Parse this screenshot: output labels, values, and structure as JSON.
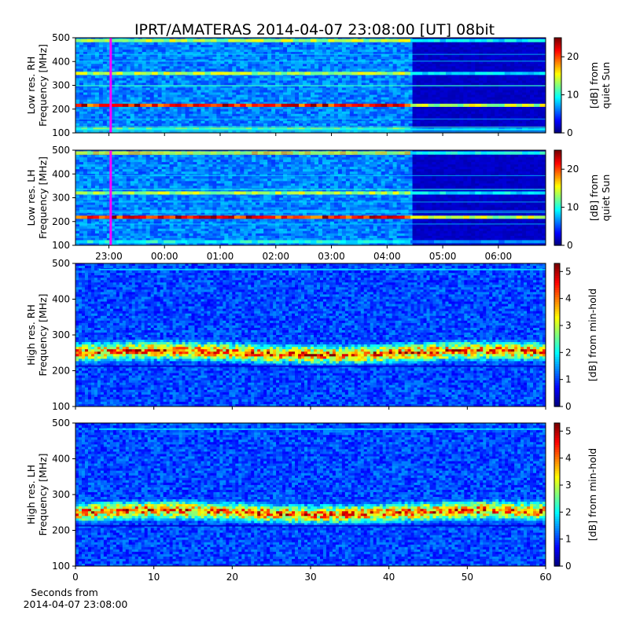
{
  "figure": {
    "title": "IPRT/AMATERAS 2014-04-07 23:08:00 [UT]   08bit"
  },
  "chart_data": [
    {
      "id": "low-rh",
      "type": "heatmap",
      "title": "",
      "ylabel": [
        "Low res. RH",
        "Frequency [MHz]"
      ],
      "ylim": [
        100,
        500
      ],
      "yticks": [
        100,
        200,
        300,
        400,
        500
      ],
      "xlim": [
        -0.6,
        7.85
      ],
      "xticks": [
        0,
        1,
        2,
        3,
        4,
        5,
        6,
        7
      ],
      "xticklabels": [
        "23:00",
        "00:00",
        "01:00",
        "02:00",
        "03:00",
        "04:00",
        "05:00",
        "06:00"
      ],
      "show_xticklabels": false,
      "colorbar": {
        "label": [
          "[dB] from",
          "quiet Sun"
        ],
        "range": [
          0,
          25
        ],
        "ticks": [
          0,
          10,
          20
        ]
      },
      "colormap": "jet",
      "marker_line": {
        "x": 0.0333,
        "color": "#ff00ff"
      },
      "data_gap_start": 5.4,
      "emission_bands": [
        {
          "freq": 488,
          "intensity": 14
        },
        {
          "freq": 350,
          "intensity": 14
        },
        {
          "freq": 216,
          "intensity": 22
        },
        {
          "freq": 115,
          "intensity": 12
        }
      ],
      "data_note_band": "strong narrowband emission near 216 MHz throughout"
    },
    {
      "id": "low-lh",
      "type": "heatmap",
      "title": "",
      "ylabel": [
        "Low res. LH",
        "Frequency [MHz]"
      ],
      "ylim": [
        100,
        500
      ],
      "yticks": [
        100,
        200,
        300,
        400,
        500
      ],
      "xlim": [
        -0.6,
        7.85
      ],
      "xticks": [
        0,
        1,
        2,
        3,
        4,
        5,
        6,
        7
      ],
      "xticklabels": [
        "23:00",
        "00:00",
        "01:00",
        "02:00",
        "03:00",
        "04:00",
        "05:00",
        "06:00"
      ],
      "show_xticklabels": true,
      "colorbar": {
        "label": [
          "[dB] from",
          "quiet Sun"
        ],
        "range": [
          0,
          25
        ],
        "ticks": [
          0,
          10,
          20
        ]
      },
      "colormap": "jet",
      "marker_line": {
        "x": 0.0333,
        "color": "#ff00ff"
      },
      "data_gap_start": 5.4,
      "emission_bands": [
        {
          "freq": 488,
          "intensity": 16
        },
        {
          "freq": 320,
          "intensity": 14
        },
        {
          "freq": 218,
          "intensity": 22
        },
        {
          "freq": 115,
          "intensity": 10
        }
      ]
    },
    {
      "id": "high-rh",
      "type": "heatmap",
      "title": "",
      "ylabel": [
        "High res. RH",
        "Frequency [MHz]"
      ],
      "ylim": [
        100,
        500
      ],
      "yticks": [
        100,
        200,
        300,
        400,
        500
      ],
      "xlim": [
        0,
        60
      ],
      "xticks": [
        0,
        10,
        20,
        30,
        40,
        50,
        60
      ],
      "show_xticklabels": false,
      "colorbar": {
        "label": [
          "[dB] from min-hold"
        ],
        "range": [
          0,
          5.3
        ],
        "ticks": [
          0,
          1,
          2,
          3,
          4,
          5
        ]
      },
      "colormap": "jet",
      "burst_band": {
        "center_freq": 250,
        "width_freq": 40,
        "peak": 5
      }
    },
    {
      "id": "high-lh",
      "type": "heatmap",
      "title": "",
      "ylabel": [
        "High res. LH",
        "Frequency [MHz]"
      ],
      "ylim": [
        100,
        500
      ],
      "yticks": [
        100,
        200,
        300,
        400,
        500
      ],
      "xlim": [
        0,
        60
      ],
      "xticks": [
        0,
        10,
        20,
        30,
        40,
        50,
        60
      ],
      "show_xticklabels": true,
      "xlabel": [
        "Seconds from",
        "2014-04-07 23:08:00"
      ],
      "colorbar": {
        "label": [
          "[dB] from min-hold"
        ],
        "range": [
          0,
          5.3
        ],
        "ticks": [
          0,
          1,
          2,
          3,
          4,
          5
        ]
      },
      "colormap": "jet",
      "burst_band": {
        "center_freq": 250,
        "width_freq": 40,
        "peak": 5
      }
    }
  ]
}
